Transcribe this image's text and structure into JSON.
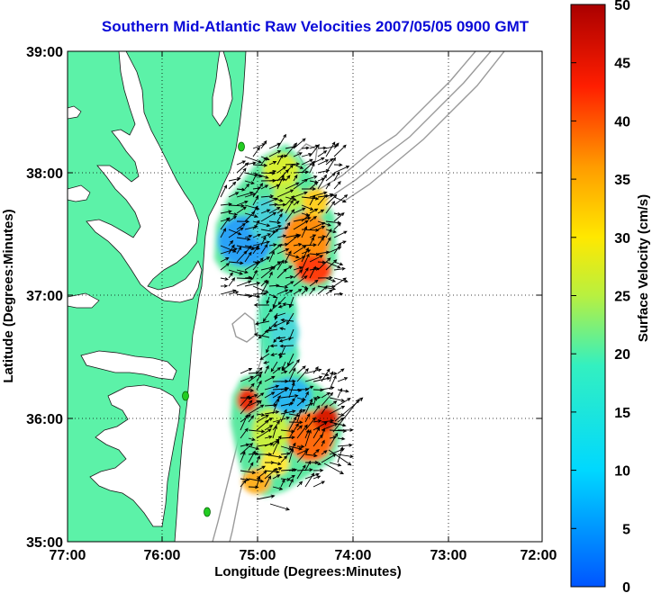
{
  "title": "Southern Mid-Atlantic Raw Velocities 2007/05/05 0900 GMT",
  "map": {
    "xlabel": "Longitude (Degrees:Minutes)",
    "ylabel": "Latitude (Degrees:Minutes)",
    "x_ticks": [
      "77:00",
      "76:00",
      "75:00",
      "74:00",
      "73:00",
      "72:00"
    ],
    "y_ticks": [
      "39:00",
      "38:00",
      "37:00",
      "36:00",
      "35:00"
    ],
    "lon_range": [
      -77,
      -72
    ],
    "lat_range": [
      35,
      39
    ],
    "grid": "dotted",
    "land_color": "#5cf2a8",
    "bathymetry_color": "#9a9a9a",
    "station_color": "#22cc22",
    "stations": [
      {
        "lon": -75.15,
        "lat": 38.22
      },
      {
        "lon": -75.73,
        "lat": 36.18
      },
      {
        "lon": -75.47,
        "lat": 35.25
      }
    ]
  },
  "colorbar": {
    "label": "Surface Velocity (cm/s)",
    "ticks": [
      "50",
      "45",
      "40",
      "35",
      "30",
      "25",
      "20",
      "15",
      "10",
      "5",
      "0"
    ],
    "range": [
      0,
      50
    ],
    "colormap": "jet"
  }
}
